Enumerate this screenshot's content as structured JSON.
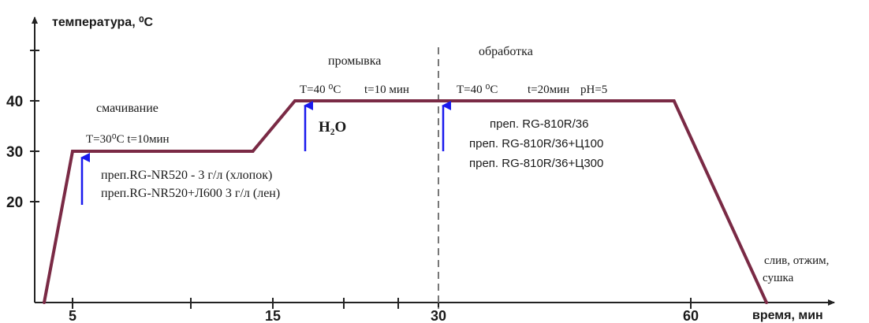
{
  "chart_data": {
    "type": "line",
    "xlabel": "время, мин",
    "ylabel": "температура, ⁰С",
    "x_ticks": [
      "5",
      "15",
      "30",
      "60"
    ],
    "y_ticks": [
      "20",
      "30",
      "40"
    ],
    "xlim": [
      0,
      68
    ],
    "ylim": [
      0,
      55
    ],
    "series": [
      {
        "x": [
          0,
          5,
          14,
          17,
          30,
          58,
          66
        ],
        "y": [
          0,
          30,
          30,
          40,
          40,
          40,
          0
        ]
      }
    ],
    "annotations": {
      "wetting": {
        "title": "смачивание",
        "condition": "T=30⁰С t=10мин",
        "reagent_1": "преп.RG-NR520 - 3 г/л (хлопок)",
        "reagent_2": "преп.RG-NR520+Л600 3 г/л (лен)"
      },
      "rinsing": {
        "title": "промывка",
        "condition_t": "T=40 ⁰С",
        "condition_time": "t=10 мин",
        "water": "H₂O"
      },
      "treatment": {
        "title": "обработка",
        "condition_t": "T=40 ⁰С",
        "condition_time": "t=20мин",
        "ph": "pH=5",
        "reagent_1": "преп. RG-810R/36",
        "reagent_2": "преп. RG-810R/36+Ц100",
        "reagent_3": "преп. RG-810R/36+Ц300"
      },
      "end": {
        "line_1": "слив, отжим,",
        "line_2": "сушка"
      }
    },
    "colors": {
      "profile": "#7a2a45",
      "arrow": "#1a1aee",
      "axis": "#222222",
      "divider": "#777777"
    }
  }
}
